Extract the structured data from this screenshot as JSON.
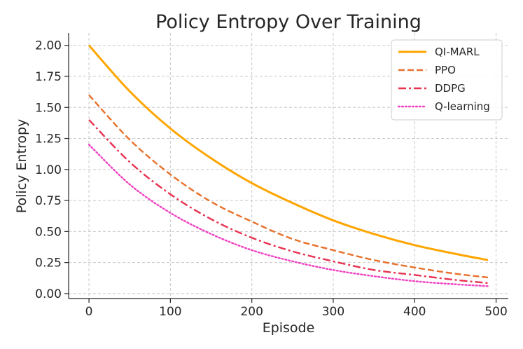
{
  "chart_data": {
    "type": "line",
    "title": "Policy Entropy Over Training",
    "xlabel": "Episode",
    "ylabel": "Policy Entropy",
    "xlim": [
      -25,
      515
    ],
    "ylim": [
      -0.04,
      2.1
    ],
    "xticks": [
      0,
      100,
      200,
      300,
      400,
      500
    ],
    "yticks": [
      0.0,
      0.25,
      0.5,
      0.75,
      1.0,
      1.25,
      1.5,
      1.75,
      2.0
    ],
    "xtick_labels": [
      "0",
      "100",
      "200",
      "300",
      "400",
      "500"
    ],
    "ytick_labels": [
      "0.00",
      "0.25",
      "0.50",
      "0.75",
      "1.00",
      "1.25",
      "1.50",
      "1.75",
      "2.00"
    ],
    "grid": true,
    "legend_position": "top-right",
    "x": [
      0,
      50,
      100,
      150,
      200,
      250,
      300,
      350,
      400,
      450,
      490
    ],
    "series": [
      {
        "name": "QI-MARL",
        "color": "#FFA500",
        "dash": "solid",
        "values": [
          2.0,
          1.63,
          1.33,
          1.09,
          0.89,
          0.73,
          0.59,
          0.48,
          0.39,
          0.32,
          0.27
        ]
      },
      {
        "name": "PPO",
        "color": "#E8702A",
        "dash": "dashed",
        "values": [
          1.6,
          1.24,
          0.96,
          0.74,
          0.58,
          0.44,
          0.35,
          0.27,
          0.21,
          0.16,
          0.13
        ]
      },
      {
        "name": "DDPG",
        "color": "#E8304F",
        "dash": "dashdot",
        "values": [
          1.4,
          1.06,
          0.8,
          0.6,
          0.45,
          0.34,
          0.26,
          0.19,
          0.15,
          0.11,
          0.085
        ]
      },
      {
        "name": "Q-learning",
        "color": "#F040C0",
        "dash": "dotted",
        "values": [
          1.2,
          0.88,
          0.65,
          0.48,
          0.35,
          0.26,
          0.19,
          0.14,
          0.1,
          0.075,
          0.06
        ]
      }
    ]
  }
}
